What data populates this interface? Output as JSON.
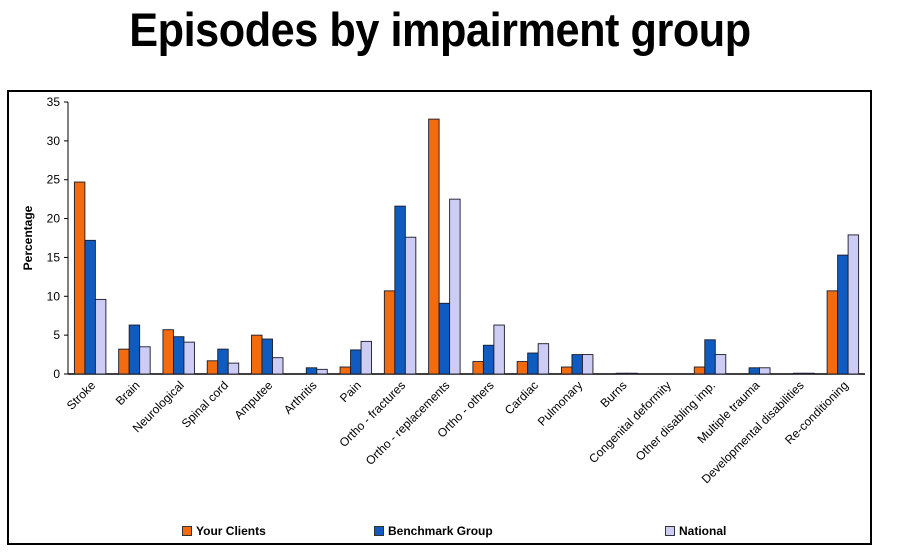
{
  "chart_data": {
    "type": "bar",
    "title": "Episodes by impairment group",
    "xlabel": "",
    "ylabel": "Percentage",
    "ylim": [
      0,
      35
    ],
    "yticks": [
      0,
      5,
      10,
      15,
      20,
      25,
      30,
      35
    ],
    "grid": false,
    "legend_position": "bottom",
    "categories": [
      "Stroke",
      "Brain",
      "Neurological",
      "Spinal cord",
      "Amputee",
      "Arthritis",
      "Pain",
      "Ortho - fractures",
      "Ortho - replacements",
      "Ortho - others",
      "Cardiac",
      "Pulmonary",
      "Burns",
      "Congenital deformity",
      "Other disabling imp.",
      "Multiple trauma",
      "Developmental disabilities",
      "Re-conditioning"
    ],
    "series": [
      {
        "name": "Your Clients",
        "color": "#f26b0f",
        "values": [
          24.7,
          3.2,
          5.7,
          1.7,
          5.0,
          0.0,
          0.9,
          10.7,
          32.8,
          1.6,
          1.6,
          0.9,
          0.0,
          0.0,
          0.9,
          0.0,
          0.0,
          10.7
        ]
      },
      {
        "name": "Benchmark Group",
        "color": "#0f5bbf",
        "values": [
          17.2,
          6.3,
          4.8,
          3.2,
          4.5,
          0.8,
          3.1,
          21.6,
          9.1,
          3.7,
          2.7,
          2.5,
          0.1,
          0.0,
          4.4,
          0.8,
          0.1,
          15.3
        ]
      },
      {
        "name": "National",
        "color": "#ccccf5",
        "values": [
          9.6,
          3.5,
          4.1,
          1.4,
          2.1,
          0.6,
          4.2,
          17.6,
          22.5,
          6.3,
          3.9,
          2.5,
          0.1,
          0.0,
          2.5,
          0.8,
          0.1,
          17.9
        ]
      }
    ]
  }
}
